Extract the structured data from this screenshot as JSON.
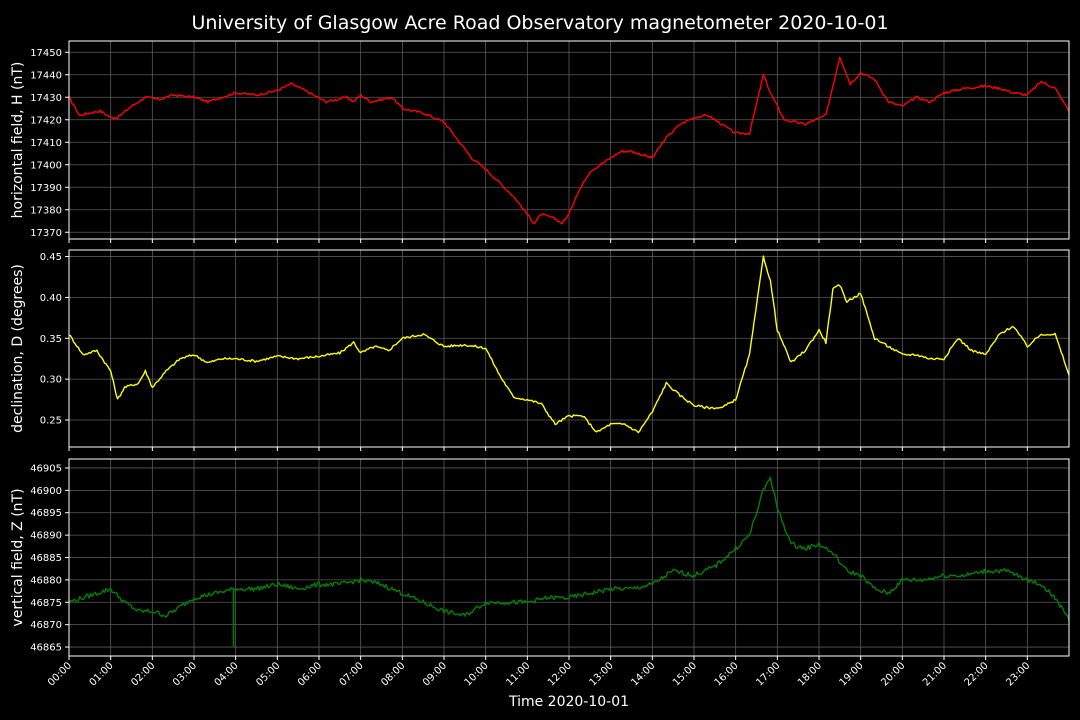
{
  "chart_data": {
    "type": "line",
    "title": "University of Glasgow Acre Road Observatory magnetometer 2020-10-01",
    "xlabel": "Time 2020-10-01",
    "x_ticks": [
      "00:00",
      "01:00",
      "02:00",
      "03:00",
      "04:00",
      "05:00",
      "06:00",
      "07:00",
      "08:00",
      "09:00",
      "10:00",
      "11:00",
      "12:00",
      "13:00",
      "14:00",
      "15:00",
      "16:00",
      "17:00",
      "18:00",
      "19:00",
      "20:00",
      "21:00",
      "22:00",
      "23:00"
    ],
    "xlim": [
      "00:00",
      "24:00"
    ],
    "grid": true,
    "colors": {
      "background": "#000000",
      "grid": "#5a5a5a",
      "axes": "#ffffff"
    },
    "panels": [
      {
        "ylabel": "horizontal field, H (nT)",
        "color": "#ff0000",
        "ylim": [
          17367,
          17455
        ],
        "y_ticks": [
          17370,
          17380,
          17390,
          17400,
          17410,
          17420,
          17430,
          17440,
          17450
        ],
        "tick_labels": [
          "17370",
          "17380",
          "17390",
          "17400",
          "17410",
          "17420",
          "17430",
          "17440",
          "17450"
        ],
        "series": {
          "x": [
            "00:00",
            "00:15",
            "00:45",
            "01:00",
            "01:10",
            "01:30",
            "01:50",
            "02:10",
            "02:30",
            "03:00",
            "03:20",
            "03:40",
            "04:00",
            "04:30",
            "05:00",
            "05:20",
            "05:40",
            "06:10",
            "06:40",
            "06:50",
            "07:00",
            "07:15",
            "07:30",
            "07:45",
            "08:00",
            "08:30",
            "09:00",
            "09:20",
            "09:40",
            "10:00",
            "10:20",
            "10:40",
            "11:00",
            "11:10",
            "11:20",
            "11:40",
            "11:50",
            "12:00",
            "12:10",
            "12:30",
            "13:00",
            "13:15",
            "13:30",
            "14:00",
            "14:20",
            "14:40",
            "15:00",
            "15:20",
            "15:40",
            "16:00",
            "16:20",
            "16:40",
            "16:50",
            "17:10",
            "17:40",
            "18:10",
            "18:30",
            "18:45",
            "19:00",
            "19:20",
            "19:40",
            "20:00",
            "20:20",
            "20:40",
            "21:00",
            "21:30",
            "22:00",
            "22:20",
            "22:40",
            "23:00",
            "23:20",
            "23:40",
            "24:00"
          ],
          "y": [
            17430,
            17422,
            17424,
            17421,
            17421,
            17426,
            17430,
            17429,
            17431,
            17430,
            17428,
            17430,
            17432,
            17431,
            17433,
            17436,
            17433,
            17428,
            17430,
            17428,
            17431,
            17428,
            17429,
            17430,
            17425,
            17423,
            17419,
            17411,
            17403,
            17398,
            17392,
            17386,
            17378,
            17374,
            17378,
            17376,
            17374,
            17378,
            17386,
            17397,
            17403,
            17406,
            17406,
            17403,
            17412,
            17418,
            17421,
            17422,
            17418,
            17414,
            17414,
            17440,
            17432,
            17420,
            17418,
            17422,
            17448,
            17436,
            17441,
            17438,
            17428,
            17426,
            17430,
            17428,
            17432,
            17434,
            17435,
            17434,
            17432,
            17431,
            17437,
            17434,
            17424
          ]
        }
      },
      {
        "ylabel": "declination, D (degrees)",
        "color": "#ffff00",
        "ylim": [
          0.217,
          0.458
        ],
        "y_ticks": [
          0.25,
          0.3,
          0.35,
          0.4,
          0.45
        ],
        "tick_labels": [
          "0.25",
          "0.30",
          "0.35",
          "0.40",
          "0.45"
        ],
        "series": {
          "x": [
            "00:00",
            "00:20",
            "00:40",
            "01:00",
            "01:10",
            "01:20",
            "01:40",
            "01:50",
            "02:00",
            "02:20",
            "02:40",
            "03:00",
            "03:20",
            "03:40",
            "04:00",
            "04:30",
            "05:00",
            "05:30",
            "06:00",
            "06:30",
            "06:50",
            "07:00",
            "07:20",
            "07:40",
            "08:00",
            "08:30",
            "09:00",
            "09:30",
            "10:00",
            "10:20",
            "10:40",
            "11:00",
            "11:20",
            "11:40",
            "12:00",
            "12:20",
            "12:40",
            "13:00",
            "13:20",
            "13:40",
            "14:00",
            "14:20",
            "14:40",
            "15:00",
            "15:20",
            "15:40",
            "16:00",
            "16:20",
            "16:40",
            "16:50",
            "17:00",
            "17:20",
            "17:40",
            "18:00",
            "18:10",
            "18:20",
            "18:30",
            "18:40",
            "19:00",
            "19:20",
            "19:40",
            "20:00",
            "20:20",
            "20:40",
            "21:00",
            "21:20",
            "21:40",
            "22:00",
            "22:20",
            "22:40",
            "23:00",
            "23:20",
            "23:40",
            "24:00"
          ],
          "y": [
            0.355,
            0.33,
            0.335,
            0.31,
            0.275,
            0.29,
            0.295,
            0.31,
            0.29,
            0.31,
            0.325,
            0.33,
            0.32,
            0.325,
            0.325,
            0.322,
            0.328,
            0.325,
            0.328,
            0.332,
            0.345,
            0.332,
            0.34,
            0.335,
            0.35,
            0.355,
            0.34,
            0.342,
            0.338,
            0.305,
            0.278,
            0.275,
            0.27,
            0.245,
            0.255,
            0.255,
            0.235,
            0.245,
            0.245,
            0.235,
            0.26,
            0.295,
            0.28,
            0.268,
            0.265,
            0.265,
            0.275,
            0.33,
            0.45,
            0.42,
            0.36,
            0.32,
            0.335,
            0.36,
            0.345,
            0.41,
            0.415,
            0.395,
            0.405,
            0.35,
            0.34,
            0.33,
            0.33,
            0.325,
            0.325,
            0.35,
            0.335,
            0.33,
            0.355,
            0.365,
            0.34,
            0.355,
            0.355,
            0.305
          ]
        }
      },
      {
        "ylabel": "vertical field, Z (nT)",
        "color": "#008000",
        "ylim": [
          46863,
          46907
        ],
        "y_ticks": [
          46865,
          46870,
          46875,
          46880,
          46885,
          46890,
          46895,
          46900,
          46905
        ],
        "tick_labels": [
          "46865",
          "46870",
          "46875",
          "46880",
          "46885",
          "46890",
          "46895",
          "46900",
          "46905"
        ],
        "series": {
          "x": [
            "00:00",
            "00:20",
            "00:40",
            "01:00",
            "01:20",
            "01:40",
            "02:00",
            "02:20",
            "02:40",
            "03:00",
            "03:30",
            "04:00",
            "04:30",
            "05:00",
            "05:30",
            "06:00",
            "06:30",
            "07:00",
            "07:30",
            "08:00",
            "08:30",
            "09:00",
            "09:30",
            "10:00",
            "10:30",
            "11:00",
            "11:30",
            "12:00",
            "12:30",
            "13:00",
            "13:30",
            "14:00",
            "14:30",
            "15:00",
            "15:30",
            "16:00",
            "16:20",
            "16:40",
            "16:50",
            "17:00",
            "17:20",
            "17:40",
            "18:00",
            "18:20",
            "18:40",
            "19:00",
            "19:20",
            "19:40",
            "20:00",
            "20:30",
            "21:00",
            "21:30",
            "22:00",
            "22:30",
            "23:00",
            "23:20",
            "23:40",
            "24:00"
          ],
          "y": [
            46875,
            46876,
            46877,
            46878,
            46875,
            46873,
            46873,
            46872,
            46874,
            46876,
            46877,
            46878,
            46878,
            46879,
            46878,
            46879,
            46879,
            46880,
            46879,
            46877,
            46875,
            46873,
            46872,
            46875,
            46875,
            46875,
            46876,
            46876,
            46877,
            46878,
            46878,
            46879,
            46882,
            46881,
            46883,
            46887,
            46890,
            46900,
            46903,
            46896,
            46888,
            46887,
            46888,
            46886,
            46882,
            46881,
            46878,
            46877,
            46880,
            46880,
            46881,
            46881,
            46882,
            46882,
            46880,
            46879,
            46876,
            46871
          ]
        },
        "spikes": [
          {
            "x": "03:57",
            "from": 46878,
            "to": 46865
          }
        ]
      }
    ]
  }
}
